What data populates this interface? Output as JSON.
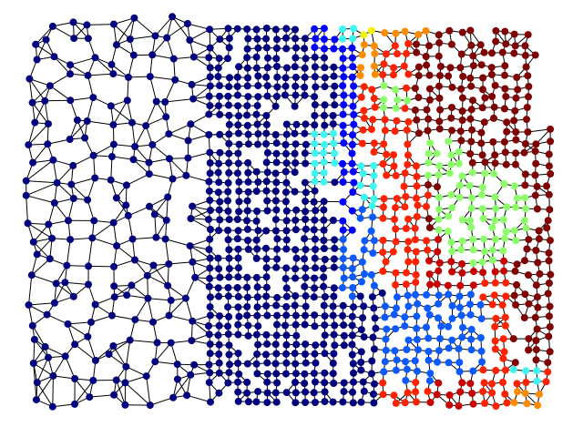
{
  "diagram": {
    "type": "graph",
    "layout": "mesh",
    "edge_color": "#000000",
    "node_colormap": "jet",
    "palette": {
      "navy": "#00007f",
      "blue": "#0000ff",
      "azure": "#0a5aff",
      "cyan": "#3ff6f0",
      "light_green": "#8cff6a",
      "yellow": "#f4f40a",
      "orange": "#ff8c00",
      "red": "#ff2200",
      "crimson": "#c80000",
      "maroon": "#7f0000"
    },
    "region_colors": [
      {
        "region": "west",
        "color": "navy"
      },
      {
        "region": "center-north-band",
        "color": "blue"
      },
      {
        "region": "center-east-band",
        "color": "azure"
      },
      {
        "region": "upper-middle",
        "color": "cyan"
      },
      {
        "region": "east-north",
        "color": "maroon"
      },
      {
        "region": "east-center",
        "color": "light_green"
      },
      {
        "region": "east-lower",
        "color": "red"
      },
      {
        "region": "south-east-corner",
        "color": "orange"
      }
    ]
  }
}
